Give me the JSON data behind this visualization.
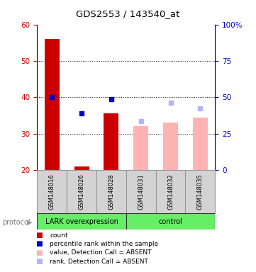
{
  "title": "GDS2553 / 143540_at",
  "samples": [
    "GSM148016",
    "GSM148026",
    "GSM148028",
    "GSM148031",
    "GSM148032",
    "GSM148035"
  ],
  "bar_values": [
    56.0,
    21.0,
    35.5,
    32.0,
    33.0,
    34.5
  ],
  "bar_absent": [
    false,
    false,
    false,
    true,
    true,
    true
  ],
  "rank_values": [
    40.0,
    35.5,
    39.5,
    33.5,
    38.5,
    37.0
  ],
  "rank_absent": [
    false,
    false,
    false,
    true,
    true,
    true
  ],
  "ylim_left": [
    20,
    60
  ],
  "ylim_right": [
    0,
    100
  ],
  "yticks_left": [
    20,
    30,
    40,
    50,
    60
  ],
  "ytick_labels_left": [
    "20",
    "30",
    "40",
    "50",
    "60"
  ],
  "yticks_right": [
    0,
    25,
    50,
    75,
    100
  ],
  "ytick_labels_right": [
    "0",
    "25",
    "50",
    "75",
    "100%"
  ],
  "bar_color_present": "#cc0000",
  "bar_color_absent": "#ffb3b3",
  "rank_color_present": "#0000cc",
  "rank_color_absent": "#b3b3ff",
  "bar_width": 0.5,
  "legend_labels": [
    "count",
    "percentile rank within the sample",
    "value, Detection Call = ABSENT",
    "rank, Detection Call = ABSENT"
  ],
  "protocol_label": "protocol",
  "group_label_1": "LARK overexpression",
  "group_label_2": "control",
  "grid_lines": [
    30,
    40,
    50
  ],
  "sample_box_color": "#d3d3d3",
  "sample_box_border": "#999999",
  "group_box_color": "#66ee66",
  "group_box_border": "#333333"
}
